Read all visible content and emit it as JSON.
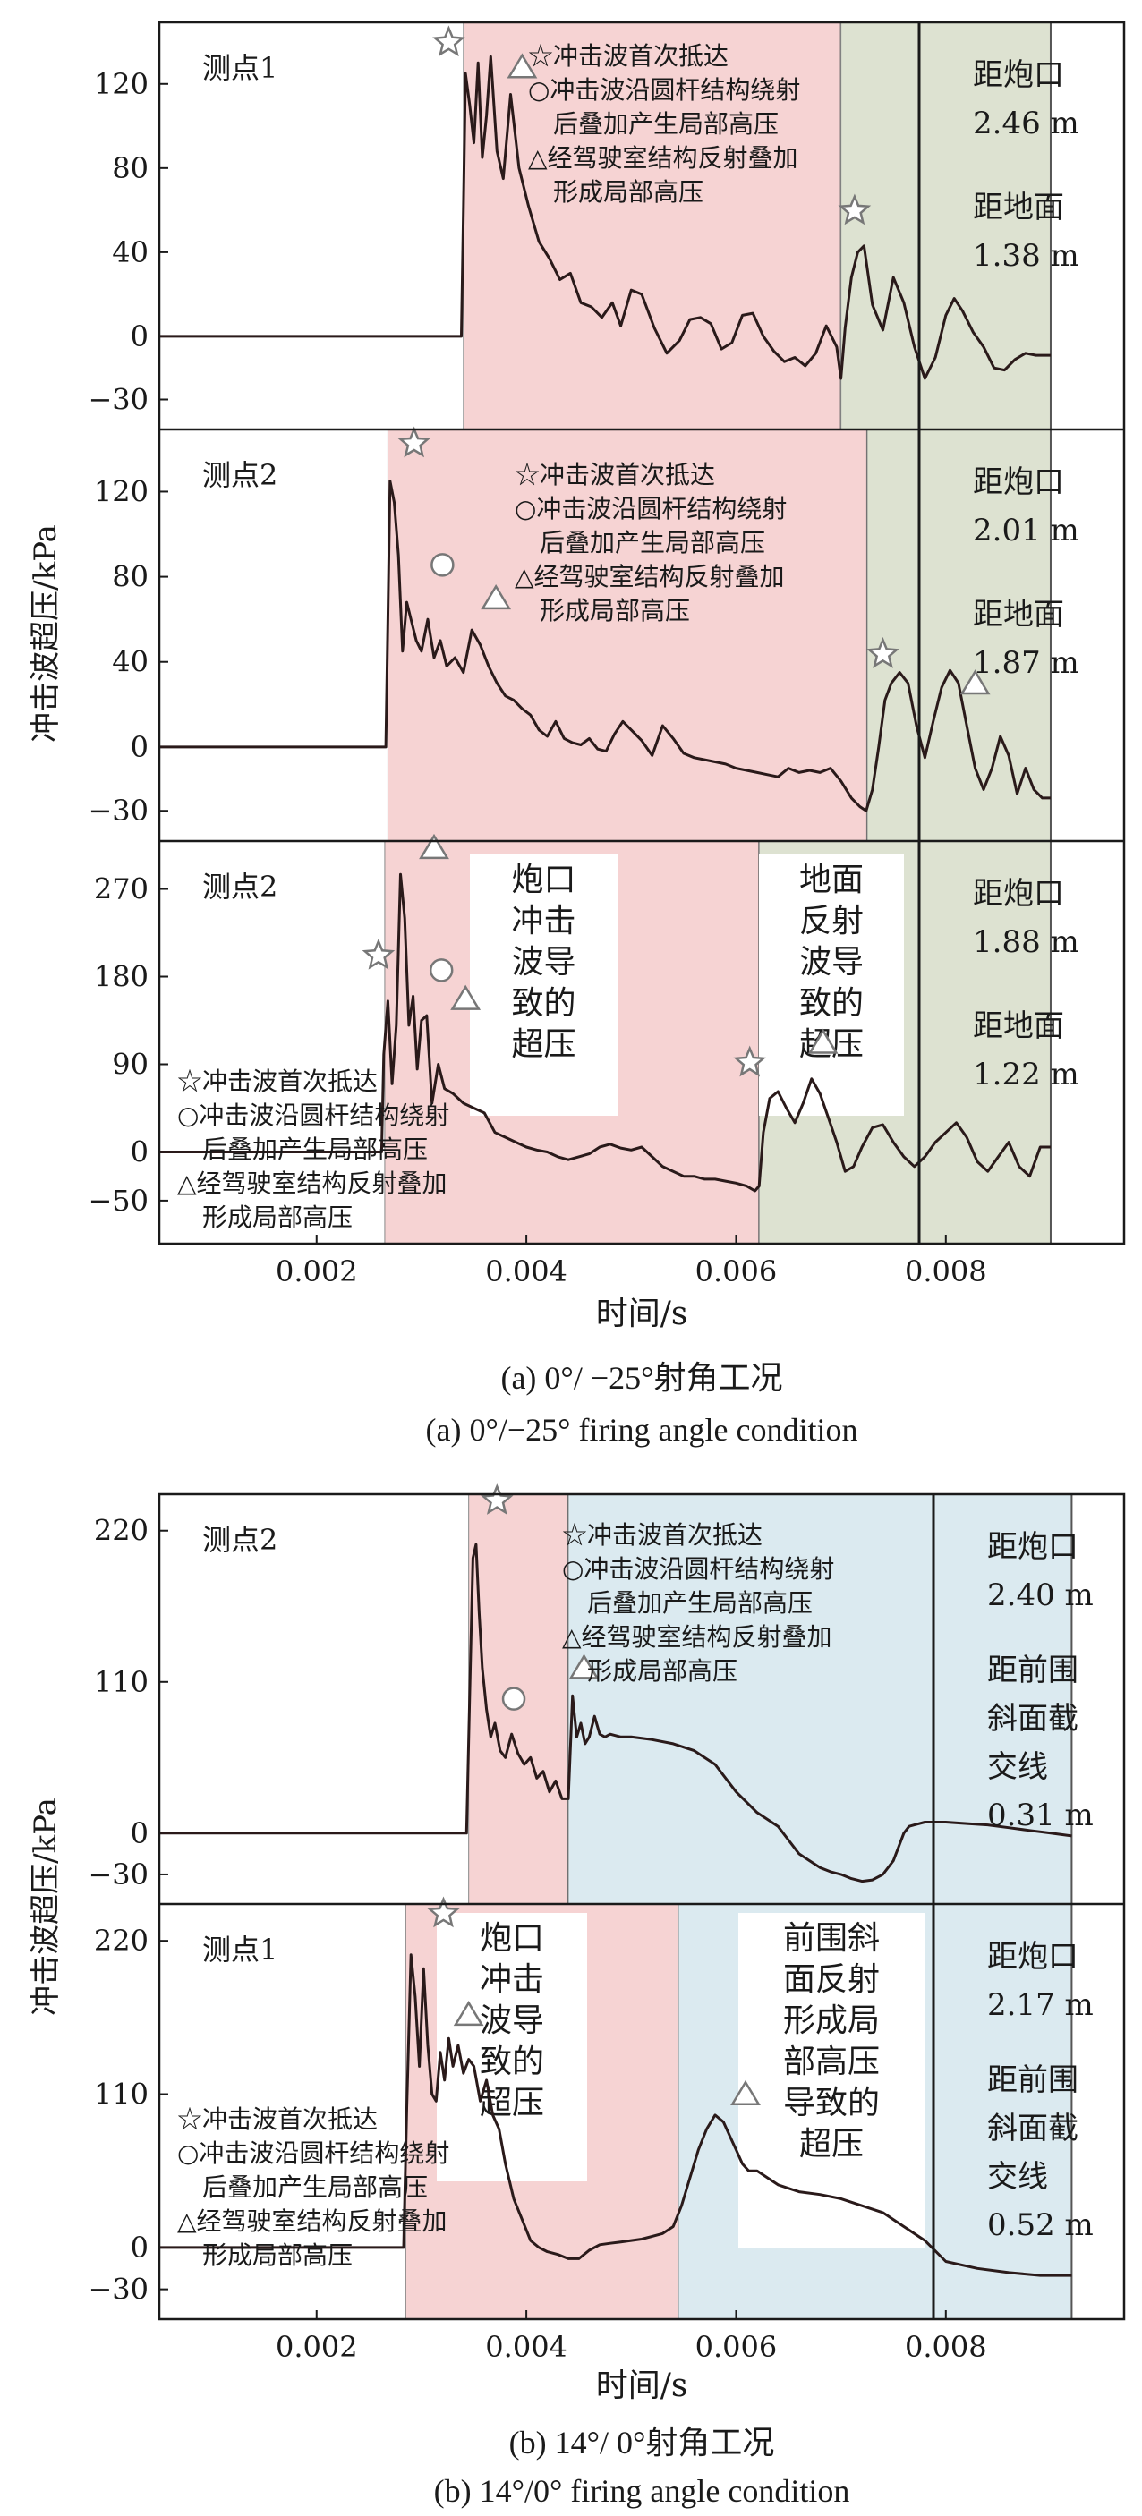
{
  "figure": {
    "ylabel": "冲击波超压/kPa",
    "xlabel": "时间/s",
    "caption_a_cn": "(a) 0°/ −25°射角工况",
    "caption_a_en": "(a) 0°/−25° firing angle condition",
    "caption_b_cn": "(b) 14°/ 0°射角工况",
    "caption_b_en": "(b) 14°/0° firing angle condition"
  },
  "legend": {
    "star": "☆冲击波首次抵达",
    "circle1": "○冲击波沿圆杆结构绕射",
    "circle2": "后叠加产生局部高压",
    "tri1": "△经驾驶室结构反射叠加",
    "tri2": "形成局部高压"
  },
  "boxes": {
    "muzzle": [
      "炮口",
      "冲击",
      "波导",
      "致的",
      "超压"
    ],
    "ground": [
      "地面",
      "反射",
      "波导",
      "致的",
      "超压"
    ],
    "slope": [
      "前围斜",
      "面反射",
      "形成局",
      "部高压",
      "导致的",
      "超压"
    ]
  },
  "colors": {
    "muzzle_region": "#f6d3d3",
    "ground_region": "#dde2d1",
    "slope_region": "#dbeaf0",
    "line": "#2a1a1a",
    "frame": "#1a1a1a"
  },
  "chart_data": [
    {
      "type": "line",
      "panel": "a1",
      "point_label": "测点1",
      "info": [
        "距炮口",
        "2.46 m",
        "距地面",
        "1.38 m"
      ],
      "xlim": [
        0.0005,
        0.0097
      ],
      "ylim": [
        -40,
        145
      ],
      "yticks": [
        120,
        80,
        40,
        0,
        -30
      ],
      "xticks": [],
      "regions": [
        {
          "kind": "muzzle",
          "x0": 0.0034,
          "x1": 0.007
        },
        {
          "kind": "ground",
          "x0": 0.007,
          "x1": 0.009
        }
      ],
      "series": [
        {
          "x": [
            0.0005,
            0.00338,
            0.0034,
            0.00342,
            0.00346,
            0.0035,
            0.00354,
            0.00358,
            0.00362,
            0.00366,
            0.00372,
            0.00378,
            0.00385,
            0.00393,
            0.00402,
            0.00412,
            0.00422,
            0.00432,
            0.00442,
            0.00452,
            0.00462,
            0.00472,
            0.00482,
            0.0049,
            0.005,
            0.0051,
            0.00522,
            0.00534,
            0.00546,
            0.00556,
            0.00566,
            0.00576,
            0.00586,
            0.00596,
            0.00606,
            0.00616,
            0.00626,
            0.00636,
            0.00646,
            0.00656,
            0.00666,
            0.00676,
            0.00686,
            0.00696,
            0.007,
            0.00704,
            0.0071,
            0.00716,
            0.00722,
            0.0073,
            0.0074,
            0.0075,
            0.0076,
            0.0077,
            0.0078,
            0.0079,
            0.008,
            0.00808,
            0.00816,
            0.00826,
            0.00836,
            0.00846,
            0.00856,
            0.00866,
            0.00876,
            0.00886,
            0.00896,
            0.009
          ],
          "y": [
            0,
            0,
            60,
            125,
            110,
            92,
            130,
            85,
            105,
            133,
            88,
            75,
            115,
            80,
            62,
            45,
            37,
            27,
            30,
            16,
            14,
            9,
            16,
            5,
            22,
            20,
            4,
            -8,
            -2,
            8,
            9,
            6,
            -6,
            -3,
            10,
            11,
            0,
            -7,
            -12,
            -10,
            -14,
            -8,
            5,
            -5,
            -20,
            4,
            28,
            40,
            43,
            15,
            3,
            28,
            16,
            -5,
            -20,
            -10,
            10,
            18,
            12,
            2,
            -5,
            -15,
            -16,
            -11,
            -8,
            -9,
            -9,
            -9
          ]
        }
      ]
    },
    {
      "type": "line",
      "panel": "a2",
      "point_label": "测点2",
      "info": [
        "距炮口",
        "2.01 m",
        "距地面",
        "1.87 m"
      ],
      "xlim": [
        0.0005,
        0.0097
      ],
      "ylim": [
        -40,
        145
      ],
      "yticks": [
        120,
        80,
        40,
        0,
        -30
      ],
      "xticks": [],
      "regions": [
        {
          "kind": "muzzle",
          "x0": 0.00268,
          "x1": 0.00725
        },
        {
          "kind": "ground",
          "x0": 0.00725,
          "x1": 0.009
        }
      ],
      "series": [
        {
          "x": [
            0.0005,
            0.00266,
            0.00268,
            0.0027,
            0.00274,
            0.00278,
            0.00282,
            0.00286,
            0.0029,
            0.00295,
            0.003,
            0.00306,
            0.00312,
            0.00318,
            0.00324,
            0.00332,
            0.0034,
            0.00348,
            0.00356,
            0.00364,
            0.00372,
            0.0038,
            0.00388,
            0.00396,
            0.00404,
            0.00412,
            0.0042,
            0.00428,
            0.00436,
            0.00444,
            0.00452,
            0.0046,
            0.00468,
            0.00476,
            0.00484,
            0.00492,
            0.005,
            0.0051,
            0.0052,
            0.0053,
            0.0054,
            0.0055,
            0.0056,
            0.0057,
            0.0058,
            0.0059,
            0.006,
            0.0061,
            0.0062,
            0.0063,
            0.0064,
            0.0065,
            0.0066,
            0.0067,
            0.0068,
            0.0069,
            0.007,
            0.0071,
            0.00718,
            0.00724,
            0.0073,
            0.00736,
            0.00742,
            0.00748,
            0.00756,
            0.00764,
            0.00772,
            0.0078,
            0.00788,
            0.00796,
            0.00804,
            0.00812,
            0.0082,
            0.00828,
            0.00836,
            0.00844,
            0.00852,
            0.0086,
            0.00868,
            0.00876,
            0.00884,
            0.00892,
            0.009
          ],
          "y": [
            0,
            0,
            60,
            125,
            115,
            90,
            45,
            68,
            60,
            50,
            45,
            60,
            42,
            50,
            38,
            42,
            35,
            55,
            48,
            38,
            30,
            24,
            22,
            18,
            15,
            8,
            5,
            12,
            4,
            2,
            1,
            4,
            -1,
            -2,
            6,
            12,
            8,
            3,
            -4,
            10,
            4,
            -3,
            -5,
            -6,
            -7,
            -8,
            -10,
            -11,
            -12,
            -13,
            -14,
            -10,
            -12,
            -11,
            -12,
            -10,
            -16,
            -24,
            -28,
            -30,
            -20,
            0,
            22,
            30,
            35,
            30,
            10,
            -5,
            12,
            28,
            36,
            30,
            10,
            -10,
            -20,
            -10,
            5,
            -4,
            -22,
            -10,
            -20,
            -24,
            -24
          ]
        }
      ]
    },
    {
      "type": "line",
      "panel": "a3",
      "point_label": "测点2",
      "info": [
        "距炮口",
        "1.88 m",
        "距地面",
        "1.22 m"
      ],
      "xlim": [
        0.0005,
        0.0097
      ],
      "ylim": [
        -85,
        310
      ],
      "yticks": [
        270,
        180,
        90,
        0,
        -50
      ],
      "xticks": [
        0.002,
        0.004,
        0.006,
        0.008
      ],
      "regions": [
        {
          "kind": "muzzle",
          "x0": 0.00265,
          "x1": 0.00622
        },
        {
          "kind": "ground",
          "x0": 0.00622,
          "x1": 0.009
        }
      ],
      "series": [
        {
          "x": [
            0.0005,
            0.00262,
            0.00264,
            0.00268,
            0.00272,
            0.00276,
            0.0028,
            0.00284,
            0.00288,
            0.00292,
            0.00296,
            0.003,
            0.00305,
            0.0031,
            0.00316,
            0.00322,
            0.0033,
            0.0034,
            0.0035,
            0.0036,
            0.0037,
            0.0038,
            0.0039,
            0.004,
            0.0041,
            0.0042,
            0.0043,
            0.0044,
            0.0045,
            0.0046,
            0.0047,
            0.0048,
            0.0049,
            0.005,
            0.0051,
            0.0052,
            0.0053,
            0.0054,
            0.0055,
            0.0056,
            0.0057,
            0.0058,
            0.0059,
            0.006,
            0.0061,
            0.00618,
            0.00622,
            0.00626,
            0.00632,
            0.0064,
            0.00648,
            0.00656,
            0.00664,
            0.00672,
            0.0068,
            0.00688,
            0.00696,
            0.00704,
            0.00712,
            0.0072,
            0.0073,
            0.0074,
            0.0075,
            0.0076,
            0.0077,
            0.0078,
            0.0079,
            0.008,
            0.0081,
            0.0082,
            0.0083,
            0.0084,
            0.0085,
            0.0086,
            0.0087,
            0.0088,
            0.0089,
            0.009
          ],
          "y": [
            0,
            0,
            100,
            155,
            70,
            130,
            285,
            240,
            130,
            160,
            85,
            135,
            140,
            50,
            90,
            65,
            60,
            50,
            45,
            40,
            20,
            15,
            10,
            5,
            2,
            0,
            -5,
            -8,
            -5,
            -2,
            5,
            8,
            4,
            2,
            5,
            -5,
            -15,
            -20,
            -25,
            -25,
            -28,
            -28,
            -30,
            -32,
            -35,
            -40,
            -35,
            20,
            55,
            62,
            45,
            30,
            50,
            75,
            60,
            35,
            10,
            -20,
            -15,
            5,
            25,
            28,
            10,
            -5,
            -15,
            -5,
            10,
            20,
            30,
            15,
            -10,
            -20,
            -5,
            10,
            -15,
            -25,
            5,
            5
          ]
        }
      ]
    },
    {
      "type": "line",
      "panel": "b1",
      "point_label": "测点2",
      "info": [
        "距炮口",
        "2.40 m",
        "距前围",
        "斜面截",
        "交线",
        "0.31 m"
      ],
      "xlim": [
        0.0005,
        0.0097
      ],
      "ylim": [
        -45,
        240
      ],
      "yticks": [
        220,
        110,
        0,
        -30
      ],
      "xticks": [],
      "regions": [
        {
          "kind": "muzzle",
          "x0": 0.00345,
          "x1": 0.0044
        },
        {
          "kind": "slope",
          "x0": 0.0044,
          "x1": 0.0092
        }
      ],
      "series": [
        {
          "x": [
            0.0005,
            0.00343,
            0.00346,
            0.00349,
            0.00352,
            0.00355,
            0.00358,
            0.00362,
            0.00366,
            0.0037,
            0.00375,
            0.0038,
            0.00386,
            0.00392,
            0.00398,
            0.00404,
            0.0041,
            0.00416,
            0.00422,
            0.00428,
            0.00434,
            0.0044,
            0.00444,
            0.00448,
            0.00452,
            0.00456,
            0.0046,
            0.00465,
            0.0047,
            0.00475,
            0.0048,
            0.0049,
            0.005,
            0.0052,
            0.0054,
            0.0056,
            0.0058,
            0.006,
            0.0062,
            0.0063,
            0.0064,
            0.0065,
            0.0066,
            0.0067,
            0.0068,
            0.0069,
            0.007,
            0.0071,
            0.0072,
            0.0073,
            0.0074,
            0.0075,
            0.0076,
            0.00765,
            0.0077,
            0.0078,
            0.0079,
            0.008,
            0.0082,
            0.0084,
            0.0086,
            0.0088,
            0.009,
            0.0092
          ],
          "y": [
            0,
            0,
            100,
            200,
            210,
            160,
            120,
            90,
            70,
            80,
            60,
            55,
            72,
            58,
            50,
            55,
            40,
            45,
            30,
            38,
            25,
            25,
            100,
            70,
            80,
            65,
            70,
            85,
            72,
            70,
            72,
            70,
            70,
            68,
            65,
            60,
            50,
            30,
            15,
            10,
            5,
            -5,
            -15,
            -20,
            -25,
            -28,
            -30,
            -33,
            -35,
            -34,
            -30,
            -20,
            0,
            5,
            6,
            8,
            8,
            8,
            7,
            6,
            4,
            2,
            0,
            -2
          ]
        }
      ]
    },
    {
      "type": "line",
      "panel": "b2",
      "point_label": "测点1",
      "info": [
        "距炮口",
        "2.17 m",
        "距前围",
        "斜面截",
        "交线",
        "0.52 m"
      ],
      "xlim": [
        0.0005,
        0.0097
      ],
      "ylim": [
        -45,
        240
      ],
      "yticks": [
        220,
        110,
        0,
        -30
      ],
      "xticks": [
        0.002,
        0.004,
        0.006,
        0.008
      ],
      "regions": [
        {
          "kind": "muzzle",
          "x0": 0.00285,
          "x1": 0.00545
        },
        {
          "kind": "slope",
          "x0": 0.00545,
          "x1": 0.0092
        }
      ],
      "series": [
        {
          "x": [
            0.0005,
            0.00283,
            0.00286,
            0.0029,
            0.00294,
            0.00298,
            0.00302,
            0.00306,
            0.0031,
            0.00314,
            0.00318,
            0.00322,
            0.00326,
            0.0033,
            0.00335,
            0.0034,
            0.00345,
            0.0035,
            0.00356,
            0.00362,
            0.00368,
            0.00374,
            0.0038,
            0.00388,
            0.00396,
            0.00404,
            0.00412,
            0.0042,
            0.0043,
            0.0044,
            0.0045,
            0.0046,
            0.0047,
            0.0048,
            0.0049,
            0.005,
            0.0051,
            0.0052,
            0.0053,
            0.0054,
            0.00548,
            0.00556,
            0.00564,
            0.00572,
            0.0058,
            0.00588,
            0.00594,
            0.006,
            0.00606,
            0.00612,
            0.0062,
            0.0063,
            0.0064,
            0.0066,
            0.0068,
            0.007,
            0.0072,
            0.0074,
            0.0076,
            0.0078,
            0.008,
            0.0083,
            0.0086,
            0.0089,
            0.0092
          ],
          "y": [
            0,
            0,
            100,
            210,
            180,
            130,
            200,
            145,
            110,
            105,
            140,
            120,
            150,
            130,
            145,
            125,
            135,
            130,
            105,
            120,
            95,
            85,
            60,
            35,
            20,
            5,
            0,
            -3,
            -5,
            -8,
            -8,
            -2,
            2,
            3,
            4,
            5,
            6,
            8,
            10,
            15,
            30,
            50,
            70,
            85,
            95,
            90,
            80,
            70,
            60,
            55,
            55,
            50,
            45,
            40,
            38,
            35,
            30,
            25,
            15,
            5,
            -10,
            -15,
            -18,
            -20,
            -20
          ]
        }
      ]
    }
  ]
}
